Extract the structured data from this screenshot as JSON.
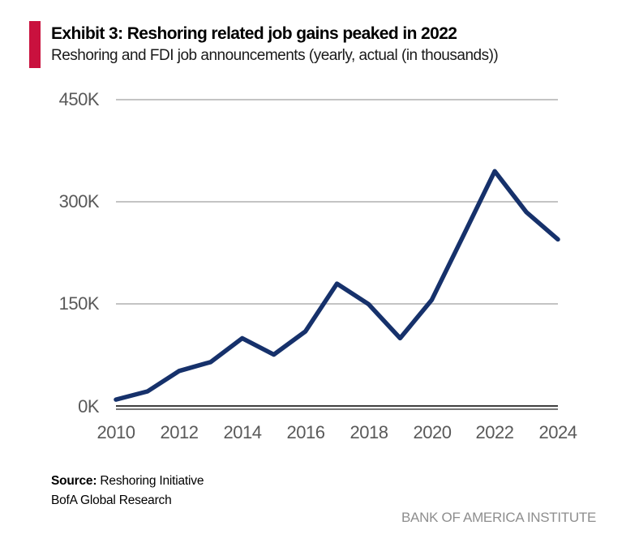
{
  "header": {
    "exhibit_title": "Exhibit 3: Reshoring related job gains peaked in 2022",
    "subtitle": "Reshoring and FDI job announcements (yearly, actual (in thousands))",
    "accent_color": "#C9113E"
  },
  "chart_data": {
    "type": "line",
    "title": "Exhibit 3: Reshoring related job gains peaked in 2022",
    "subtitle": "Reshoring and FDI job announcements (yearly, actual (in thousands))",
    "x": [
      2010,
      2011,
      2012,
      2013,
      2014,
      2015,
      2016,
      2017,
      2018,
      2019,
      2020,
      2021,
      2022,
      2023,
      2024
    ],
    "series": [
      {
        "name": "Reshoring and FDI job announcements (thousands)",
        "values": [
          10,
          22,
          52,
          65,
          100,
          76,
          110,
          180,
          150,
          100,
          156,
          250,
          345,
          285,
          245
        ]
      }
    ],
    "ylim": [
      0,
      450
    ],
    "ytick_labels_desc": [
      "450K",
      "300K",
      "150K",
      "0K"
    ],
    "xtick_labels": [
      "2010",
      "2012",
      "2014",
      "2016",
      "2018",
      "2020",
      "2022",
      "2024"
    ],
    "grid": "horizontal",
    "legend": "none",
    "line_color": "#16316B",
    "gridline_color": "#c4c4c4"
  },
  "footer": {
    "source_label": "Source:",
    "source_text": " Reshoring Initiative",
    "source_line2": "BofA Global Research",
    "brand": "BANK OF AMERICA INSTITUTE"
  }
}
